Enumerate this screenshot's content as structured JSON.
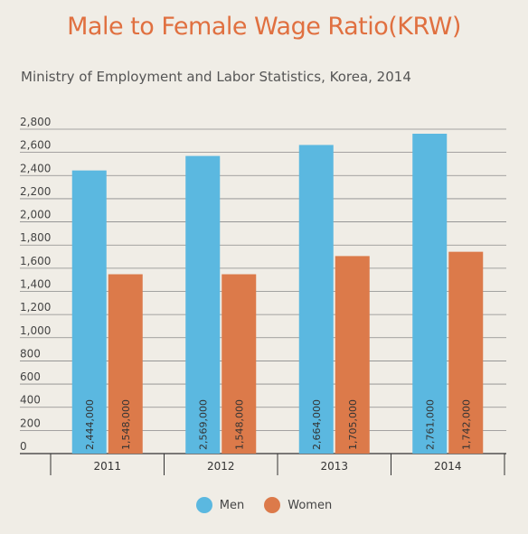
{
  "chart_data": {
    "type": "bar",
    "title": "Male to Female Wage Ratio(KRW)",
    "subtitle": "Ministry of Employment and Labor Statistics, Korea, 2014",
    "categories": [
      "2011",
      "2012",
      "2013",
      "2014"
    ],
    "series": [
      {
        "name": "Men",
        "color": "#5bb8e0",
        "values": [
          2444,
          2569,
          2664,
          2761
        ],
        "labels": [
          "2,444,000",
          "2,569,000",
          "2,664,000",
          "2,761,000"
        ]
      },
      {
        "name": "Women",
        "color": "#dc7a4a",
        "values": [
          1548,
          1548,
          1705,
          1742
        ],
        "labels": [
          "1,548,000",
          "1,548,000",
          "1,705,000",
          "1,742,000"
        ]
      }
    ],
    "ylim": [
      0,
      2800
    ],
    "yticks": [
      0,
      200,
      400,
      600,
      800,
      1000,
      1200,
      1400,
      1600,
      1800,
      2000,
      2200,
      2400,
      2600,
      2800
    ],
    "ytick_labels": [
      "0",
      "200",
      "400",
      "600",
      "800",
      "1,000",
      "1,200",
      "1,400",
      "1,600",
      "1,800",
      "2,000",
      "2,200",
      "2,400",
      "2,600",
      "2,800"
    ],
    "grid": true,
    "legend_position": "bottom-center"
  }
}
